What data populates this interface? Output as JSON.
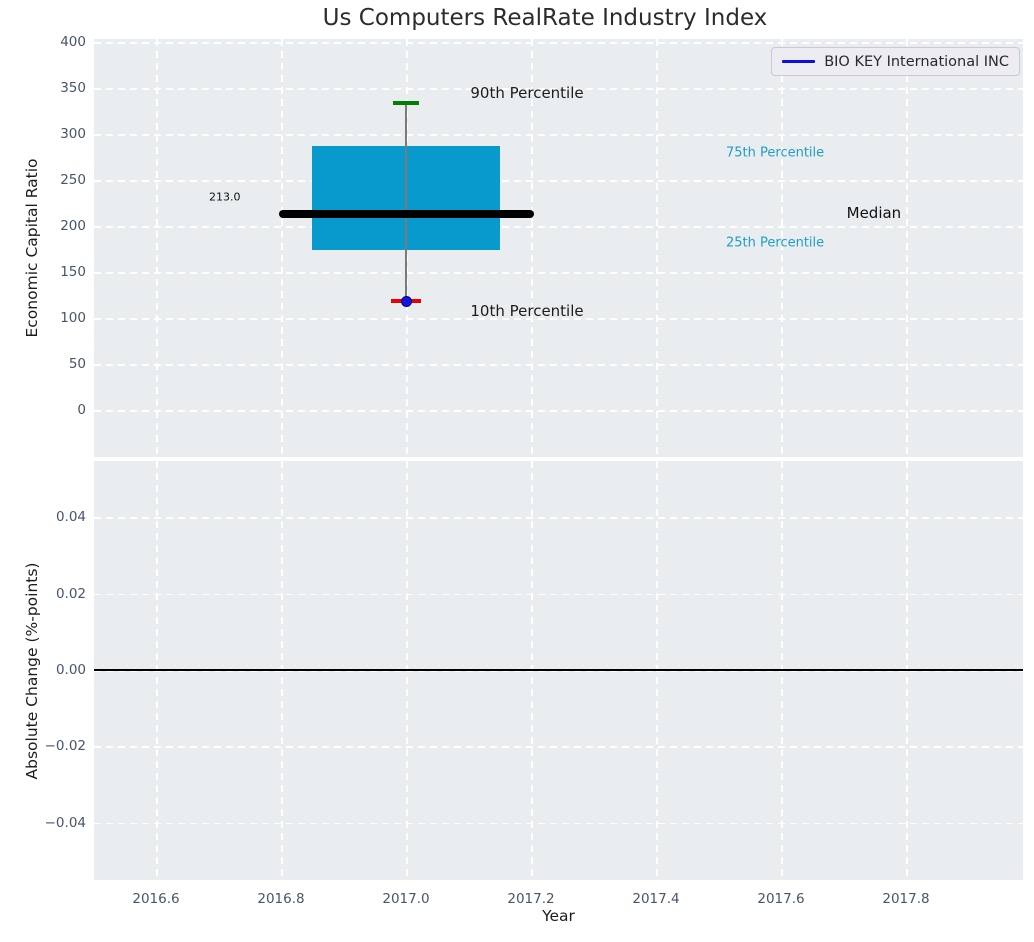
{
  "colors": {
    "axes_bg": "#e9edf0",
    "grid": "#ffffff",
    "tick": "#47566b",
    "text": "#1c1c1c",
    "title": "#2b2b31",
    "box_fill": "#0899cd",
    "percentile_label": "#1f9dc9",
    "median": "#000000",
    "p90_cap": "#008000",
    "p10_cap": "#ee0000",
    "point_fill": "#1414e0",
    "point_edge": "#000080",
    "whisker": "#7a7a7a",
    "legend_line": "#0d0de8",
    "legend_bg": "#ececf2",
    "legend_border": "#c9c9cf"
  },
  "chart_data": [
    {
      "type": "box",
      "title": "Us Computers RealRate Industry Index",
      "ylabel": "Economic Capital Ratio",
      "xlabel": "",
      "x": [
        2017.0
      ],
      "box": {
        "q10": 118.5,
        "q25": 174,
        "median": 213.0,
        "q75": 287,
        "q90": 334
      },
      "box_label": "213.0",
      "box_width_years": 0.3,
      "median_line_width_years": 0.408,
      "ylim": [
        -51.0,
        403.5
      ],
      "xlim": [
        2016.5008,
        2017.9872
      ],
      "yticks": [
        {
          "v": 400,
          "label": "400"
        },
        {
          "v": 350,
          "label": "350"
        },
        {
          "v": 300,
          "label": "300"
        },
        {
          "v": 250,
          "label": "250"
        },
        {
          "v": 200,
          "label": "200"
        },
        {
          "v": 150,
          "label": "150"
        },
        {
          "v": 100,
          "label": "100"
        },
        {
          "v": 50,
          "label": "50"
        },
        {
          "v": 0,
          "label": "0"
        }
      ],
      "grid": "white-dashed",
      "legend_position": "upper right",
      "series": [
        {
          "name": "BIO KEY International INC",
          "color": "#0d0de8",
          "x": [
            2017.0
          ],
          "y": [
            118.5
          ]
        }
      ],
      "annotations": [
        {
          "text": "90th Percentile",
          "x": 2017.103,
          "y": 345,
          "ha": "left",
          "size": 15,
          "color": "#1c1c1c"
        },
        {
          "text": "75th Percentile",
          "x": 2017.512,
          "y": 280,
          "ha": "left",
          "size": 13,
          "color": "#1f9dc9"
        },
        {
          "text": "Median",
          "x": 2017.705,
          "y": 214,
          "ha": "left",
          "size": 15,
          "color": "#111111"
        },
        {
          "text": "25th Percentile",
          "x": 2017.512,
          "y": 182,
          "ha": "left",
          "size": 13,
          "color": "#1f9dc9"
        },
        {
          "text": "10th Percentile",
          "x": 2017.103,
          "y": 108,
          "ha": "left",
          "size": 15,
          "color": "#1c1c1c"
        },
        {
          "text": "213.0",
          "x": 2016.71,
          "y": 232,
          "ha": "center",
          "size": 11,
          "color": "#111111"
        }
      ]
    },
    {
      "type": "line",
      "ylabel": "Absolute Change (%-points)",
      "xlabel": "Year",
      "ylim": [
        -0.055,
        0.0548
      ],
      "xlim": [
        2016.5008,
        2017.9872
      ],
      "zero_line_y": 0.0,
      "yticks": [
        {
          "v": 0.04,
          "label": "0.04"
        },
        {
          "v": 0.02,
          "label": "0.02"
        },
        {
          "v": 0,
          "label": "0.00"
        },
        {
          "v": -0.02,
          "label": "−0.02"
        },
        {
          "v": -0.04,
          "label": "−0.04"
        }
      ],
      "xticks": [
        {
          "v": 2016.6,
          "label": "2016.6"
        },
        {
          "v": 2016.8,
          "label": "2016.8"
        },
        {
          "v": 2017.0,
          "label": "2017.0"
        },
        {
          "v": 2017.2,
          "label": "2017.2"
        },
        {
          "v": 2017.4,
          "label": "2017.4"
        },
        {
          "v": 2017.6,
          "label": "2017.6"
        },
        {
          "v": 2017.8,
          "label": "2017.8"
        }
      ],
      "grid": "white-dashed",
      "series": []
    }
  ]
}
